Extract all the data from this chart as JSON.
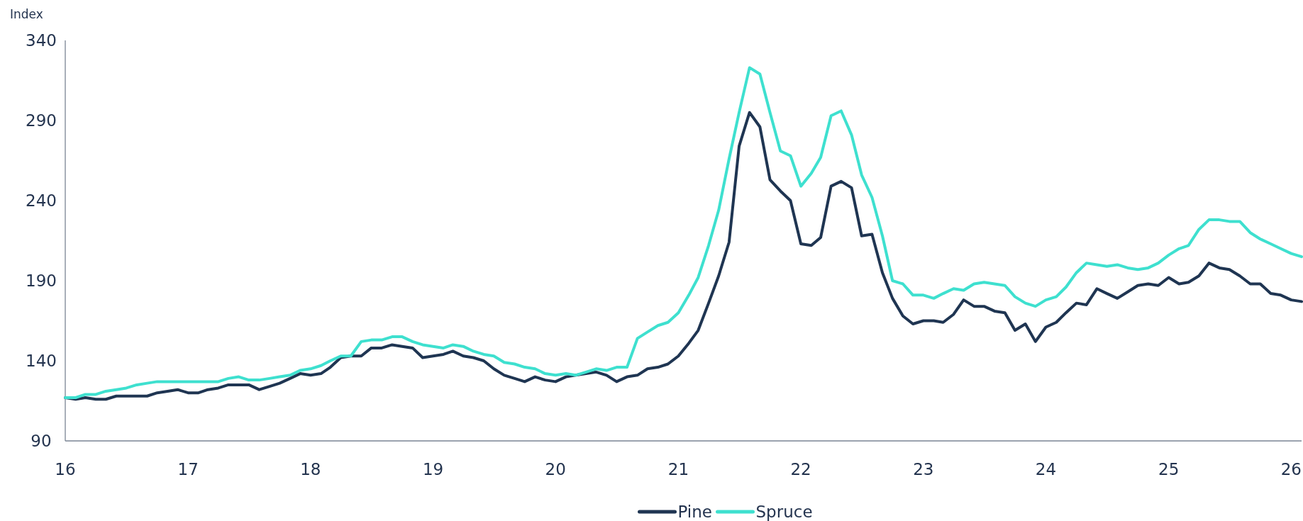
{
  "chart_data": {
    "type": "line",
    "ylabel": "Index",
    "x": [
      "2016-01",
      "2016-02",
      "2016-03",
      "2016-04",
      "2016-05",
      "2016-06",
      "2016-07",
      "2016-08",
      "2016-09",
      "2016-10",
      "2016-11",
      "2016-12",
      "2017-01",
      "2017-02",
      "2017-03",
      "2017-04",
      "2017-05",
      "2017-06",
      "2017-07",
      "2017-08",
      "2017-09",
      "2017-10",
      "2017-11",
      "2017-12",
      "2018-01",
      "2018-02",
      "2018-03",
      "2018-04",
      "2018-05",
      "2018-06",
      "2018-07",
      "2018-08",
      "2018-09",
      "2018-10",
      "2018-11",
      "2018-12",
      "2019-01",
      "2019-02",
      "2019-03",
      "2019-04",
      "2019-05",
      "2019-06",
      "2019-07",
      "2019-08",
      "2019-09",
      "2019-10",
      "2019-11",
      "2019-12",
      "2020-01",
      "2020-02",
      "2020-03",
      "2020-04",
      "2020-05",
      "2020-06",
      "2020-07",
      "2020-08",
      "2020-09",
      "2020-10",
      "2020-11",
      "2020-12",
      "2021-01",
      "2021-02",
      "2021-03",
      "2021-04",
      "2021-05",
      "2021-06",
      "2021-07",
      "2021-08",
      "2021-09",
      "2021-10",
      "2021-11",
      "2021-12",
      "2022-01",
      "2022-02",
      "2022-03",
      "2022-04",
      "2022-05",
      "2022-06",
      "2022-07",
      "2022-08",
      "2022-09",
      "2022-10",
      "2022-11",
      "2022-12",
      "2023-01",
      "2023-02",
      "2023-03",
      "2023-04",
      "2023-05",
      "2023-06",
      "2023-07",
      "2023-08",
      "2023-09",
      "2023-10",
      "2023-11",
      "2023-12",
      "2024-01",
      "2024-02",
      "2024-03",
      "2024-04",
      "2024-05",
      "2024-06",
      "2024-07",
      "2024-08",
      "2024-09",
      "2024-10",
      "2024-11",
      "2024-12",
      "2025-01",
      "2025-02",
      "2025-03",
      "2025-04",
      "2025-05",
      "2025-06",
      "2025-07",
      "2025-08",
      "2025-09",
      "2025-10",
      "2025-11",
      "2025-12",
      "2026-01",
      "2026-02"
    ],
    "series": [
      {
        "name": "Pine",
        "color": "#1f3552",
        "values": [
          117,
          116,
          117,
          116,
          116,
          118,
          118,
          118,
          118,
          120,
          121,
          122,
          120,
          120,
          122,
          123,
          125,
          125,
          125,
          122,
          124,
          126,
          129,
          132,
          131,
          132,
          136,
          142,
          143,
          143,
          148,
          148,
          150,
          149,
          148,
          142,
          143,
          144,
          146,
          143,
          142,
          140,
          135,
          131,
          129,
          127,
          130,
          128,
          127,
          130,
          131,
          132,
          133,
          131,
          127,
          130,
          131,
          135,
          136,
          138,
          143,
          151,
          159,
          176,
          193,
          214,
          274,
          295,
          286,
          253,
          246,
          240,
          213,
          212,
          217,
          249,
          252,
          248,
          218,
          219,
          195,
          179,
          168,
          163,
          165,
          165,
          164,
          169,
          178,
          174,
          174,
          171,
          170,
          159,
          163,
          152,
          161,
          164,
          170,
          176,
          175,
          185,
          182,
          179,
          183,
          187,
          188,
          187,
          192,
          188,
          189,
          193,
          201,
          198,
          197,
          193,
          188,
          188,
          182,
          181,
          178,
          177
        ]
      },
      {
        "name": "Spruce",
        "color": "#3ee0cf",
        "values": [
          117,
          117,
          119,
          119,
          121,
          122,
          123,
          125,
          126,
          127,
          127,
          127,
          127,
          127,
          127,
          127,
          129,
          130,
          128,
          128,
          129,
          130,
          131,
          134,
          135,
          137,
          140,
          143,
          143,
          152,
          153,
          153,
          155,
          155,
          152,
          150,
          149,
          148,
          150,
          149,
          146,
          144,
          143,
          139,
          138,
          136,
          135,
          132,
          131,
          132,
          131,
          133,
          135,
          134,
          136,
          136,
          154,
          158,
          162,
          164,
          170,
          181,
          192,
          212,
          234,
          266,
          295,
          323,
          319,
          295,
          271,
          268,
          249,
          257,
          267,
          293,
          296,
          281,
          256,
          242,
          218,
          190,
          188,
          181,
          181,
          179,
          182,
          185,
          184,
          188,
          189,
          188,
          187,
          180,
          176,
          174,
          178,
          180,
          186,
          195,
          201,
          200,
          199,
          200,
          198,
          197,
          198,
          201,
          206,
          210,
          212,
          222,
          228,
          228,
          227,
          227,
          220,
          216,
          213,
          210,
          207,
          205
        ]
      }
    ],
    "xlim": [
      "2016-01",
      "2026-02"
    ],
    "xticks": [
      {
        "value": "2016-01",
        "label": "16"
      },
      {
        "value": "2017-01",
        "label": "17"
      },
      {
        "value": "2018-01",
        "label": "18"
      },
      {
        "value": "2019-01",
        "label": "19"
      },
      {
        "value": "2020-01",
        "label": "20"
      },
      {
        "value": "2021-01",
        "label": "21"
      },
      {
        "value": "2022-01",
        "label": "22"
      },
      {
        "value": "2023-01",
        "label": "23"
      },
      {
        "value": "2024-01",
        "label": "24"
      },
      {
        "value": "2025-01",
        "label": "25"
      },
      {
        "value": "2026-01",
        "label": "26"
      }
    ],
    "ylim": [
      90,
      340
    ],
    "yticks": [
      90,
      140,
      190,
      240,
      290,
      340
    ],
    "grid": false,
    "legend": "bottom",
    "marker": "none",
    "line_style": "solid"
  }
}
